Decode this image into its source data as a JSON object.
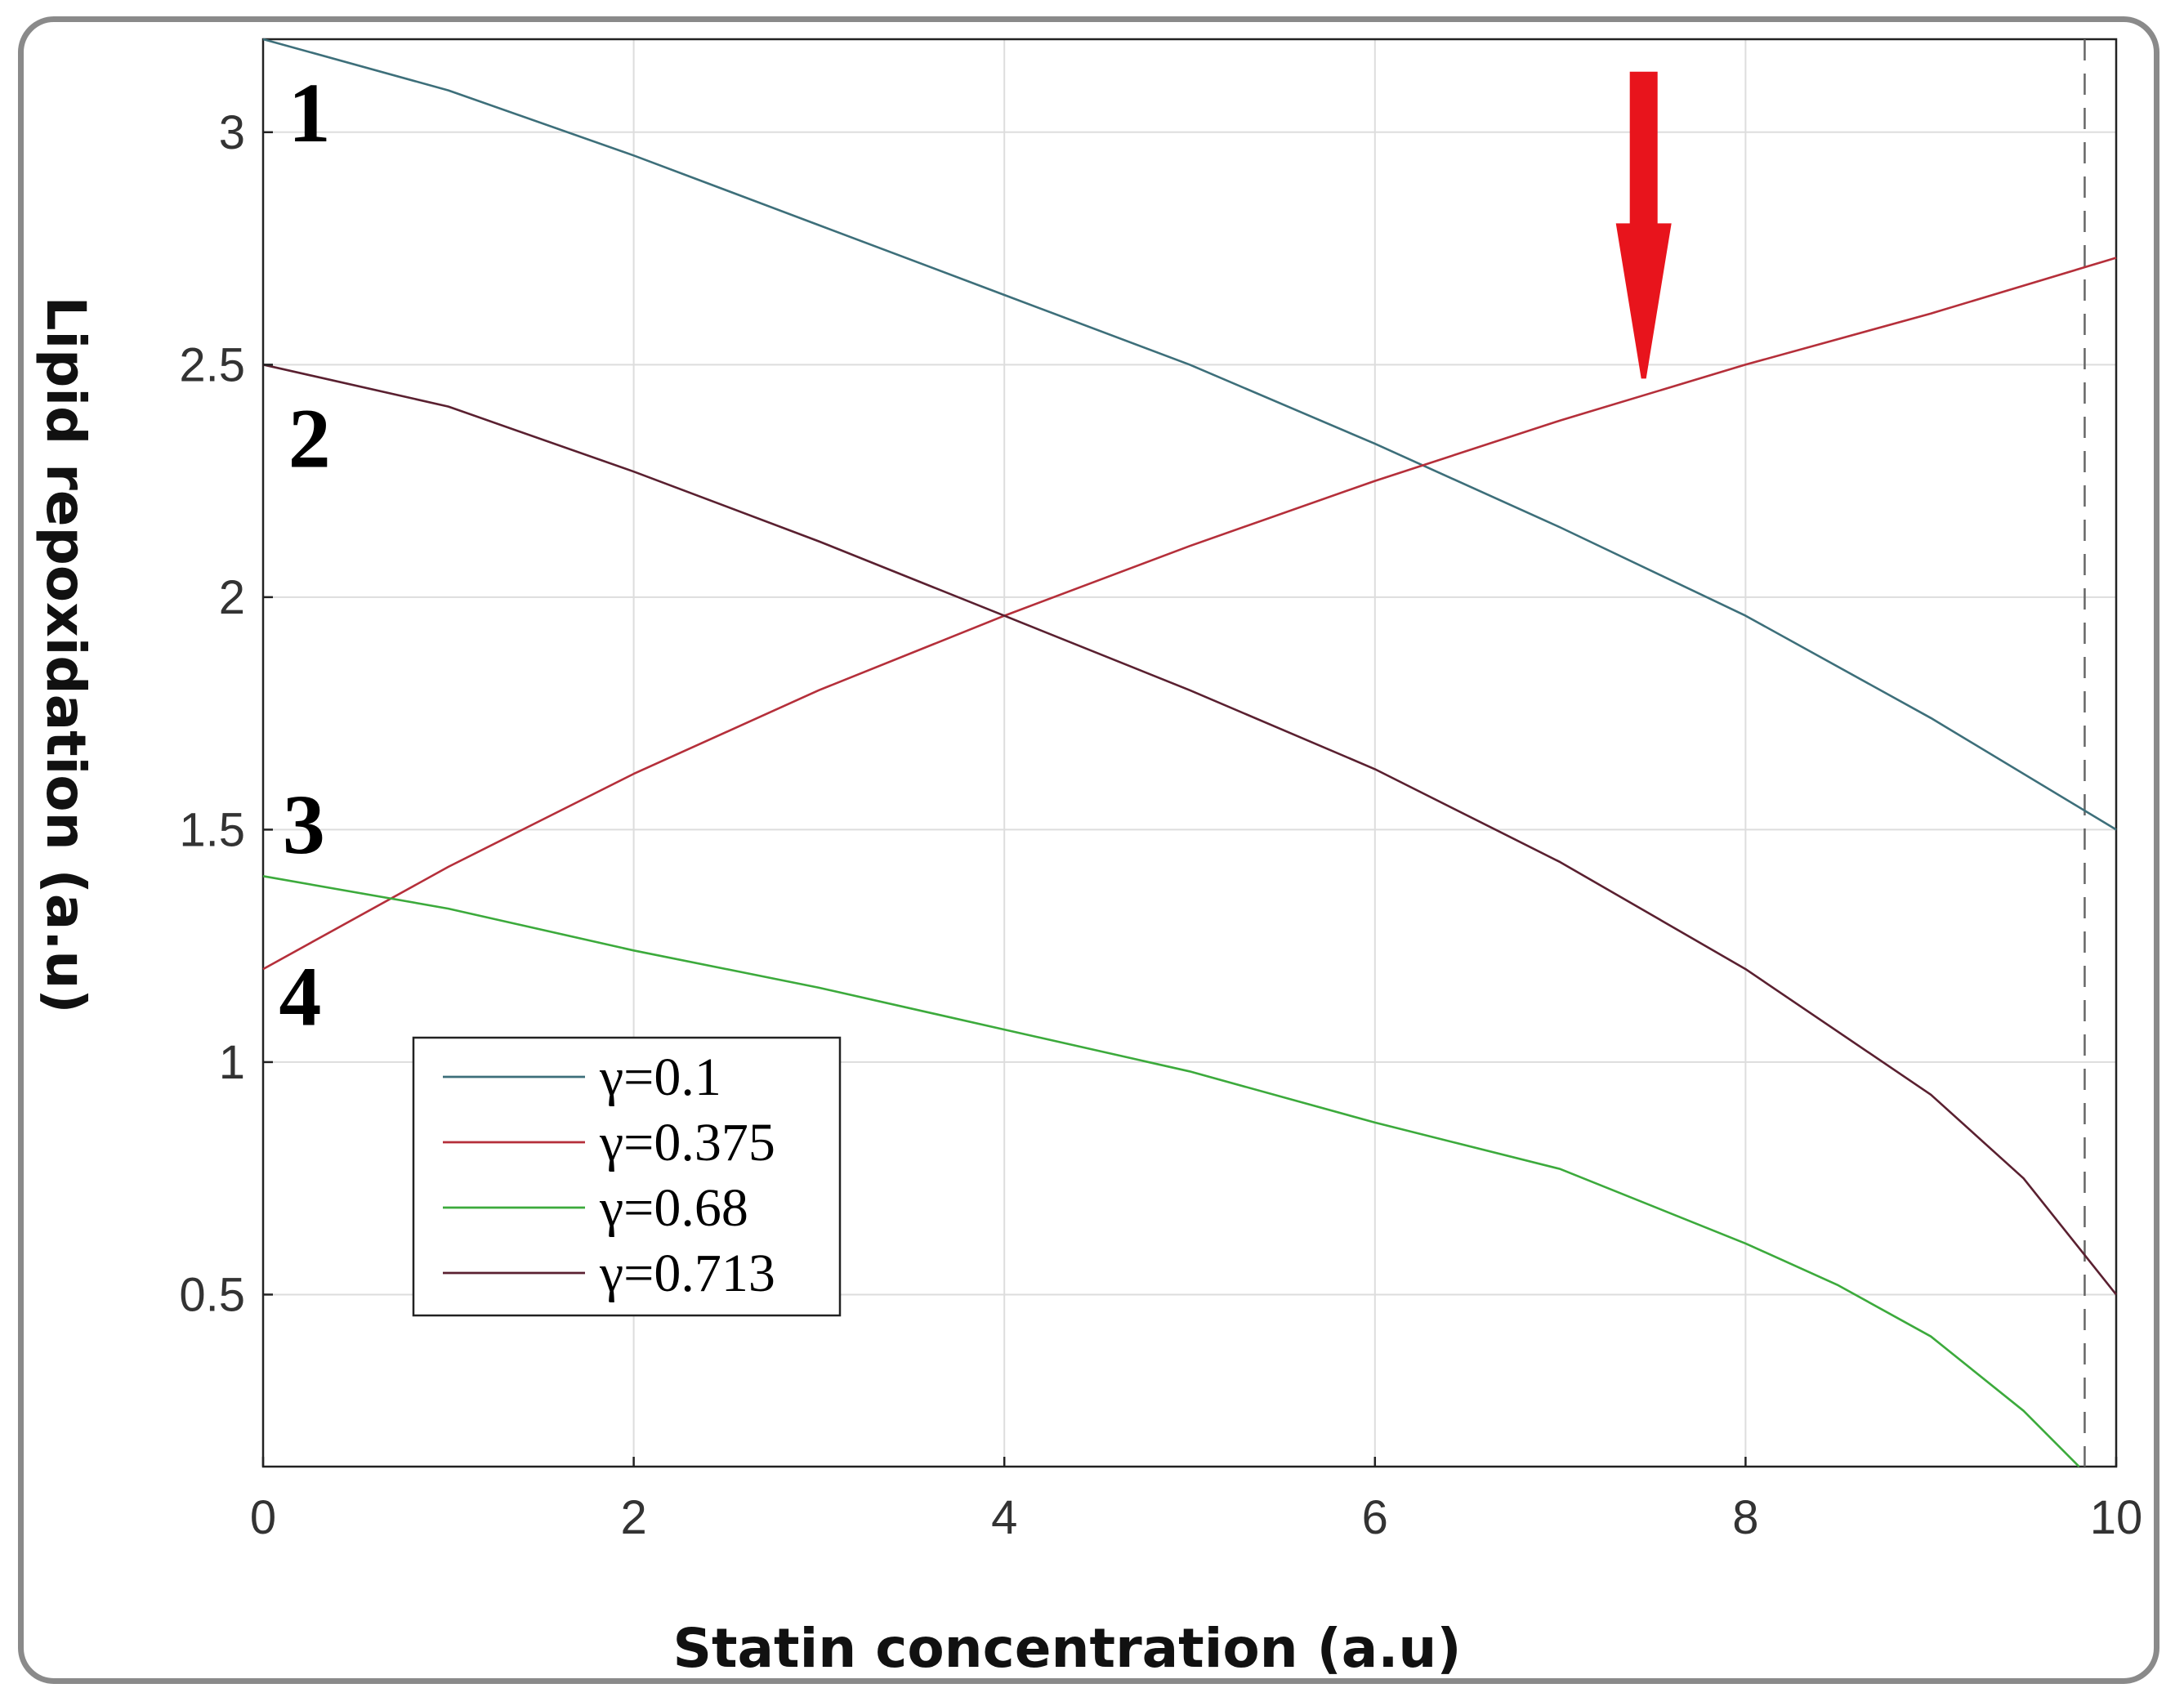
{
  "chart_data": {
    "type": "line",
    "xlabel": "Statin concentration (a.u)",
    "ylabel": "Lipid repoxidation (a.u)",
    "xlim": [
      0,
      10
    ],
    "ylim": [
      0.13,
      3.2
    ],
    "x_ticks": [
      0,
      2,
      4,
      6,
      8,
      10
    ],
    "y_ticks": [
      0.5,
      1,
      1.5,
      2,
      2.5,
      3
    ],
    "x_tick_labels": [
      "0",
      "2",
      "4",
      "6",
      "8",
      "10"
    ],
    "y_tick_labels": [
      "0.5",
      "1",
      "1.5",
      "2",
      "2.5",
      "3"
    ],
    "grid": true,
    "legend_position": "lower-left",
    "reference_line": {
      "axis": "x",
      "value": 9.83,
      "style": "dashed",
      "color": "#666666"
    },
    "arrow_annotation": {
      "x": 7.45,
      "y_from": 3.13,
      "y_to": 2.47,
      "color": "#e8141c"
    },
    "curve_labels": [
      {
        "text": "1",
        "x": 0.25,
        "y": 2.98
      },
      {
        "text": "2",
        "x": 0.25,
        "y": 2.28
      },
      {
        "text": "3",
        "x": 0.22,
        "y": 1.45
      },
      {
        "text": "4",
        "x": 0.2,
        "y": 1.08
      }
    ],
    "series": [
      {
        "name": "γ=0.1",
        "color": "#3d6f7a",
        "x": [
          0,
          1,
          2,
          3,
          4,
          5,
          6,
          7,
          8,
          9,
          10
        ],
        "y": [
          3.2,
          3.09,
          2.95,
          2.8,
          2.65,
          2.5,
          2.33,
          2.15,
          1.96,
          1.74,
          1.5
        ]
      },
      {
        "name": "γ=0.375",
        "color": "#b52f3a",
        "x": [
          0,
          1,
          2,
          3,
          4,
          5,
          6,
          7,
          8,
          9,
          10
        ],
        "y": [
          1.2,
          1.42,
          1.62,
          1.8,
          1.96,
          2.11,
          2.25,
          2.38,
          2.5,
          2.61,
          2.73
        ]
      },
      {
        "name": "γ=0.68",
        "color": "#3caa3c",
        "x": [
          0,
          1,
          2,
          3,
          4,
          5,
          6,
          7,
          8,
          8.5,
          9,
          9.5,
          9.8
        ],
        "y": [
          1.4,
          1.33,
          1.24,
          1.16,
          1.07,
          0.98,
          0.87,
          0.77,
          0.61,
          0.52,
          0.41,
          0.25,
          0.12
        ]
      },
      {
        "name": "γ=0.713",
        "color": "#5a2030",
        "x": [
          0,
          1,
          2,
          3,
          4,
          5,
          6,
          7,
          8,
          9,
          9.5,
          10
        ],
        "y": [
          2.5,
          2.41,
          2.27,
          2.12,
          1.96,
          1.8,
          1.63,
          1.43,
          1.2,
          0.93,
          0.75,
          0.5
        ]
      }
    ]
  }
}
